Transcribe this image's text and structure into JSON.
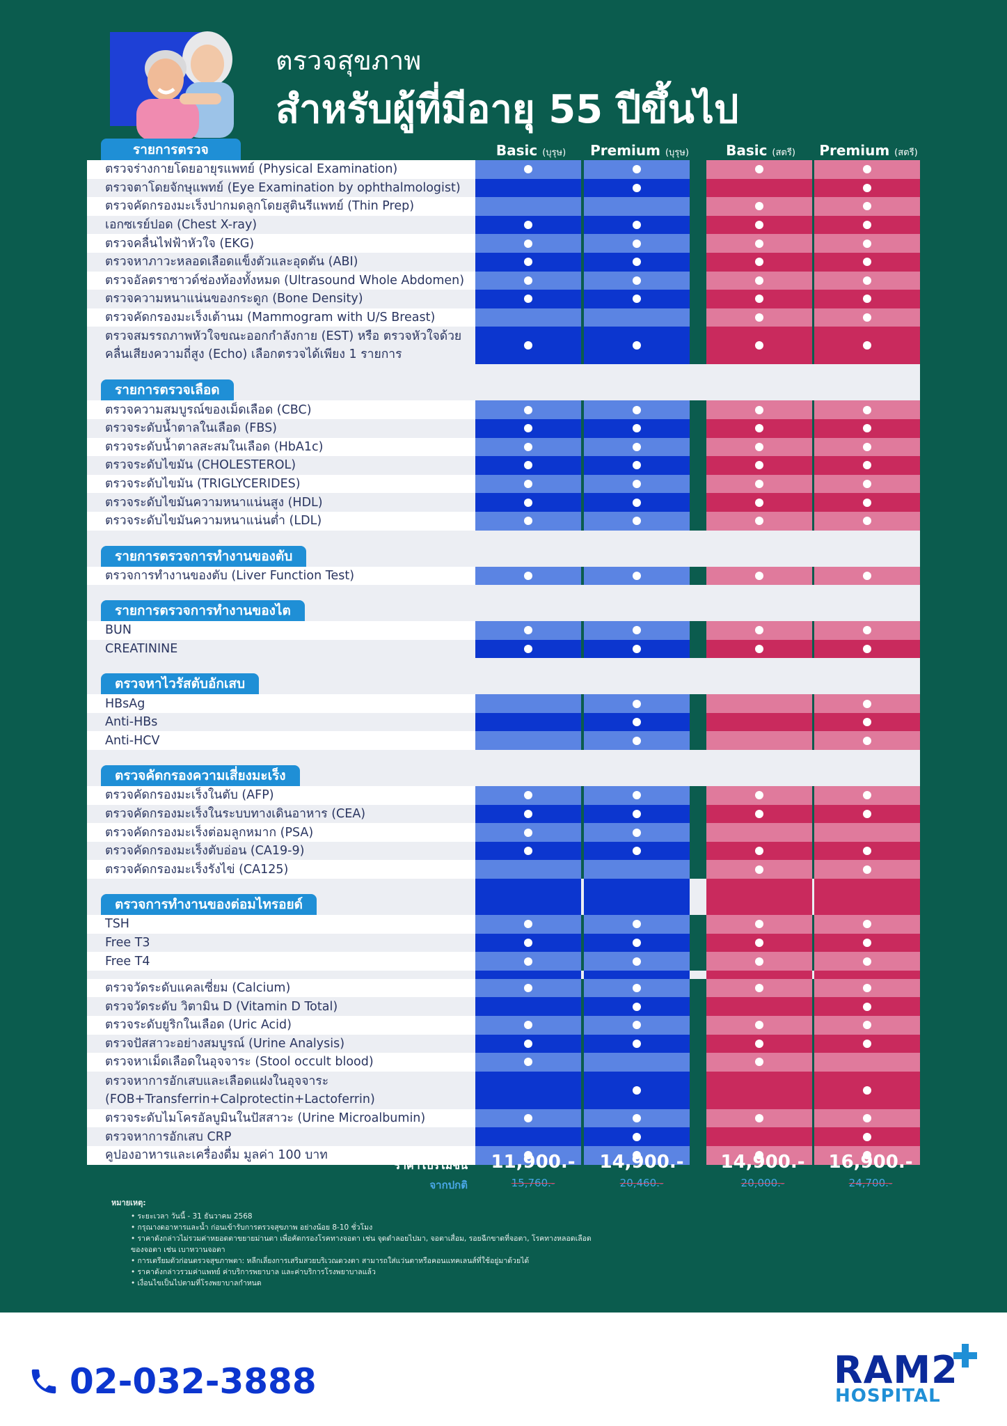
{
  "header": {
    "title_line1": "ตรวจสุขภาพ",
    "title_line2": "สำหรับผู้ที่มีอายุ 55 ปีขึ้นไป"
  },
  "columns": [
    {
      "name": "Basic",
      "gender": "(บุรุษ)"
    },
    {
      "name": "Premium",
      "gender": "(บุรุษ)"
    },
    {
      "name": "Basic",
      "gender": "(สตรี)"
    },
    {
      "name": "Premium",
      "gender": "(สตรี)"
    }
  ],
  "sections": [
    {
      "title": "รายการตรวจ",
      "items": [
        {
          "label": "ตรวจร่างกายโดยอายุรแพทย์ (Physical  Examination)",
          "marks": [
            true,
            true,
            true,
            true
          ]
        },
        {
          "label": "ตรวจตาโดยจักษุแพทย์ (Eye Examination by ophthalmologist)",
          "marks": [
            false,
            true,
            false,
            true
          ]
        },
        {
          "label": "ตรวจคัดกรองมะเร็งปากมดลูกโดยสูตินรีแพทย์ (Thin Prep)",
          "marks": [
            false,
            false,
            true,
            true
          ]
        },
        {
          "label": "เอกซเรย์ปอด (Chest X-ray)",
          "marks": [
            true,
            true,
            true,
            true
          ]
        },
        {
          "label": "ตรวจคลื่นไฟฟ้าหัวใจ (EKG)",
          "marks": [
            true,
            true,
            true,
            true
          ]
        },
        {
          "label": "ตรวจหาภาวะหลอดเลือดแข็งตัวและอุดตัน (ABI)",
          "marks": [
            true,
            true,
            true,
            true
          ]
        },
        {
          "label": "ตรวจอัลตราซาวด์ช่องท้องทั้งหมด (Ultrasound Whole Abdomen)",
          "marks": [
            true,
            true,
            true,
            true
          ]
        },
        {
          "label": "ตรวจความหนาแน่นของกระดูก (Bone Density)",
          "marks": [
            true,
            true,
            true,
            true
          ]
        },
        {
          "label": "ตรวจคัดกรองมะเร็งเต้านม (Mammogram with U/S Breast)",
          "marks": [
            false,
            false,
            true,
            true
          ]
        },
        {
          "label": "ตรวจสมรรถภาพหัวใจขณะออกกำลังกาย (EST) หรือ ตรวจหัวใจด้วยคลื่นเสียงความถี่สูง (Echo) เลือกตรวจได้เพียง 1 รายการ",
          "marks": [
            true,
            true,
            true,
            true
          ],
          "tall": true
        }
      ]
    },
    {
      "title": "รายการตรวจเลือด",
      "items": [
        {
          "label": "ตรวจความสมบูรณ์ของเม็ดเลือด (CBC)",
          "marks": [
            true,
            true,
            true,
            true
          ]
        },
        {
          "label": "ตรวจระดับน้ำตาลในเลือด (FBS)",
          "marks": [
            true,
            true,
            true,
            true
          ]
        },
        {
          "label": "ตรวจระดับน้ำตาลสะสมในเลือด (HbA1c)",
          "marks": [
            true,
            true,
            true,
            true
          ]
        },
        {
          "label": "ตรวจระดับไขมัน (CHOLESTEROL)",
          "marks": [
            true,
            true,
            true,
            true
          ]
        },
        {
          "label": "ตรวจระดับไขมัน (TRIGLYCERIDES)",
          "marks": [
            true,
            true,
            true,
            true
          ]
        },
        {
          "label": "ตรวจระดับไขมันความหนาแน่นสูง (HDL)",
          "marks": [
            true,
            true,
            true,
            true
          ]
        },
        {
          "label": "ตรวจระดับไขมันความหนาแน่นต่ำ (LDL)",
          "marks": [
            true,
            true,
            true,
            true
          ]
        }
      ]
    },
    {
      "title": "รายการตรวจการทำงานของตับ",
      "items": [
        {
          "label": "ตรวจการทำงานของตับ (Liver Function Test)",
          "marks": [
            true,
            true,
            true,
            true
          ]
        }
      ]
    },
    {
      "title": "รายการตรวจการทำงานของไต",
      "items": [
        {
          "label": "BUN",
          "marks": [
            true,
            true,
            true,
            true
          ]
        },
        {
          "label": "CREATININE",
          "marks": [
            true,
            true,
            true,
            true
          ]
        }
      ]
    },
    {
      "title": "ตรวจหาไวรัสตับอักเสบ",
      "items": [
        {
          "label": "HBsAg",
          "marks": [
            false,
            true,
            false,
            true
          ]
        },
        {
          "label": "Anti-HBs",
          "marks": [
            false,
            true,
            false,
            true
          ]
        },
        {
          "label": "Anti-HCV",
          "marks": [
            false,
            true,
            false,
            true
          ]
        }
      ]
    },
    {
      "title": "ตรวจคัดกรองความเสี่ยงมะเร็ง",
      "items": [
        {
          "label": "ตรวจคัดกรองมะเร็งในตับ (AFP)",
          "marks": [
            true,
            true,
            true,
            true
          ]
        },
        {
          "label": "ตรวจคัดกรองมะเร็งในระบบทางเดินอาหาร (CEA)",
          "marks": [
            true,
            true,
            true,
            true
          ]
        },
        {
          "label": "ตรวจคัดกรองมะเร็งต่อมลูกหมาก (PSA)",
          "marks": [
            true,
            true,
            false,
            false
          ]
        },
        {
          "label": "ตรวจคัดกรองมะเร็งตับอ่อน (CA19-9)",
          "marks": [
            true,
            true,
            true,
            true
          ]
        },
        {
          "label": "ตรวจคัดกรองมะเร็งรังไข่ (CA125)",
          "marks": [
            false,
            false,
            true,
            true
          ]
        }
      ]
    },
    {
      "title": "ตรวจการทำงานของต่อมไทรอยด์",
      "items": [
        {
          "label": "TSH",
          "marks": [
            true,
            true,
            true,
            true
          ]
        },
        {
          "label": "Free T3",
          "marks": [
            true,
            true,
            true,
            true
          ]
        },
        {
          "label": "Free T4",
          "marks": [
            true,
            true,
            true,
            true
          ]
        }
      ]
    },
    {
      "title": "",
      "items": [
        {
          "label": "ตรวจวัดระดับแคลเซี่ยม (Calcium)",
          "marks": [
            true,
            true,
            true,
            true
          ]
        },
        {
          "label": "ตรวจวัดระดับ วิตามิน D (Vitamin D Total)",
          "marks": [
            false,
            true,
            false,
            true
          ]
        },
        {
          "label": "ตรวจระดับยูริกในเลือด (Uric Acid)",
          "marks": [
            true,
            true,
            true,
            true
          ]
        },
        {
          "label": "ตรวจปัสสาวะอย่างสมบูรณ์ (Urine Analysis)",
          "marks": [
            true,
            true,
            true,
            true
          ]
        },
        {
          "label": "ตรวจหาเม็ดเลือดในอุจจาระ (Stool occult blood)",
          "marks": [
            true,
            false,
            true,
            false
          ]
        },
        {
          "label": "ตรวจหาการอักเสบและเลือดแฝงในอุจจาระ (FOB+Transferrin+Calprotectin+Lactoferrin)",
          "marks": [
            false,
            true,
            false,
            true
          ],
          "tall": true
        },
        {
          "label": "ตรวจระดับไมโครอัลบูมินในปัสสาวะ (Urine Microalbumin)",
          "marks": [
            true,
            true,
            true,
            true
          ]
        },
        {
          "label": "ตรวจหาการอักเสบ CRP",
          "marks": [
            false,
            true,
            false,
            true
          ]
        },
        {
          "label": "คูปองอาหารและเครื่องดื่ม มูลค่า 100 บาท",
          "marks": [
            true,
            true,
            true,
            true
          ]
        }
      ]
    }
  ],
  "prices": {
    "promo_label": "ราคาโปรโมชั่น",
    "regular_label": "จากปกติ",
    "promo": [
      "11,900.-",
      "14,900.-",
      "14,900.-",
      "16,900.-"
    ],
    "regular": [
      "15,760.-",
      "20,460.-",
      "20,000.-",
      "24,700.-"
    ]
  },
  "notes": {
    "heading": "หมายเหตุ:",
    "items": [
      "ระยะเวลา วันนี้ - 31 ธันวาคม 2568",
      "กรุณางดอาหารและน้ำ ก่อนเข้ารับการตรวจสุขภาพ อย่างน้อย 8-10 ชั่วโมง",
      "ราคาดังกล่าวไม่รวมค่าหยอดตาขยายม่านตา เพื่อคัดกรองโรคทางจอตา เช่น จุดดำลอยไปมา, จอตาเสื่อม, รอยฉีกขาดที่จอตา, โรคทางหลอดเลือดของจอตา เช่น เบาหวานจอตา",
      "การเตรียมตัวก่อนตรวจสุขภาพตา: หลีกเลี่ยงการเสริมสวยบริเวณดวงตา สามารถใส่แว่นตาหรือคอนแทคเลนส์ที่ใช้อยู่มาด้วยได้",
      "ราคาดังกล่าวรวมค่าแพทย์ ค่าบริการพยาบาล และค่าบริการโรงพยาบาลแล้ว",
      "เงื่อนไขเป็นไปตามที่โรงพยาบาลกำหนด"
    ]
  },
  "footer": {
    "phone": "02-032-3888",
    "logo_main": "RAM2",
    "logo_sub": "HOSPITAL"
  },
  "colors": {
    "background": "#0b5c4e",
    "blue_light": "#5b84e3",
    "blue_dark": "#0c36cf",
    "pink_light": "#e07a9c",
    "pink_dark": "#c92a5d",
    "tab": "#1f8fd6"
  },
  "icons": {
    "phone": "phone-icon",
    "logo_plus": "plus-icon"
  }
}
